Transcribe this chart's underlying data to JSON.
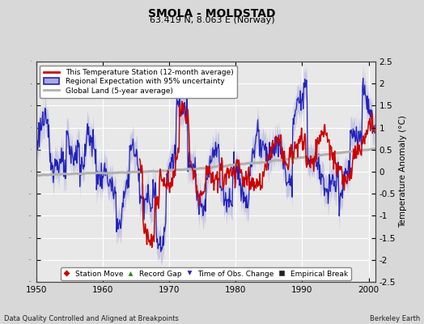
{
  "title": "SMOLA - MOLDSTAD",
  "subtitle": "63.419 N, 8.063 E (Norway)",
  "ylabel": "Temperature Anomaly (°C)",
  "xlabel_left": "Data Quality Controlled and Aligned at Breakpoints",
  "xlabel_right": "Berkeley Earth",
  "ylim": [
    -2.5,
    2.5
  ],
  "xlim": [
    1950,
    2001
  ],
  "xticks": [
    1950,
    1960,
    1970,
    1980,
    1990,
    2000
  ],
  "yticks": [
    -2.5,
    -2,
    -1.5,
    -1,
    -0.5,
    0,
    0.5,
    1,
    1.5,
    2,
    2.5
  ],
  "ytick_labels": [
    "-2.5",
    "-2",
    "-1.5",
    "-1",
    "-0.5",
    "0",
    "0.5",
    "1",
    "1.5",
    "2",
    "2.5"
  ],
  "bg_color": "#d8d8d8",
  "plot_bg_color": "#e8e8e8",
  "grid_color": "#ffffff",
  "station_color": "#cc0000",
  "regional_color": "#2222bb",
  "regional_fill": "#aaaadd",
  "global_color": "#b0b0b0",
  "title_fontsize": 10,
  "subtitle_fontsize": 8,
  "tick_fontsize": 7.5,
  "ylabel_fontsize": 7.5
}
